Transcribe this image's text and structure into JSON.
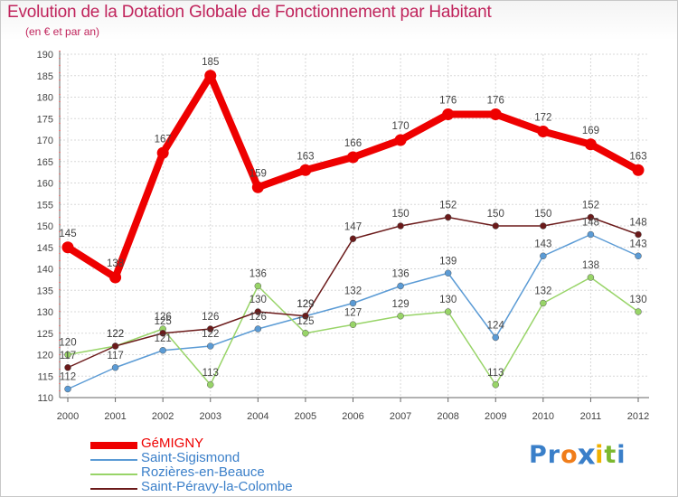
{
  "title": "Evolution de la Dotation Globale de Fonctionnement par Habitant",
  "subtitle": "(en € et par an)",
  "logo": {
    "text": "Proxiti",
    "letters": [
      "P",
      "r",
      "o",
      "x",
      "i",
      "t",
      "i"
    ],
    "letter_colors": [
      "#3a7fc9",
      "#3a7fc9",
      "#f07d1a",
      "#3a7fc9",
      "#f0b100",
      "#7cb82f",
      "#3a7fc9"
    ]
  },
  "colors": {
    "title": "#c0245c",
    "grid": "#d8d8d8",
    "axis": "#666666",
    "axis_red_ticks": "#dd0000"
  },
  "chart_data": {
    "type": "line",
    "title": "Evolution de la Dotation Globale de Fonctionnement par Habitant",
    "subtitle": "(en € et par an)",
    "xlabel": "",
    "ylabel": "",
    "categories": [
      "2000",
      "2001",
      "2002",
      "2003",
      "2004",
      "2005",
      "2006",
      "2007",
      "2008",
      "2009",
      "2010",
      "2011",
      "2012"
    ],
    "yticks": [
      110,
      115,
      120,
      125,
      130,
      135,
      140,
      145,
      150,
      155,
      160,
      165,
      170,
      175,
      180,
      185,
      190
    ],
    "ylim": [
      110,
      190
    ],
    "grid": true,
    "legend_position": "bottom-left",
    "series": [
      {
        "name": "GéMIGNY",
        "color": "#ee0000",
        "stroke": 8,
        "marker": 6.5,
        "label_offset": -12,
        "values": [
          145,
          138,
          167,
          185,
          159,
          163,
          166,
          170,
          176,
          176,
          172,
          169,
          163
        ]
      },
      {
        "name": "Saint-Sigismond",
        "color": "#5b9bd5",
        "stroke": 1.5,
        "marker": 3.5,
        "label_offset": -10,
        "values": [
          112,
          117,
          121,
          122,
          126,
          129,
          132,
          136,
          139,
          124,
          143,
          148,
          143
        ]
      },
      {
        "name": "Rozières-en-Beauce",
        "color": "#98d468",
        "stroke": 1.5,
        "marker": 3.5,
        "label_offset": -10,
        "values": [
          120,
          122,
          126,
          113,
          136,
          125,
          127,
          129,
          130,
          113,
          132,
          138,
          130
        ]
      },
      {
        "name": "Saint-Péravy-la-Colombe",
        "color": "#6b1a1a",
        "stroke": 1.5,
        "marker": 3.5,
        "label_offset": -10,
        "values": [
          117,
          122,
          125,
          126,
          130,
          129,
          147,
          150,
          152,
          150,
          150,
          152,
          148
        ]
      }
    ]
  }
}
